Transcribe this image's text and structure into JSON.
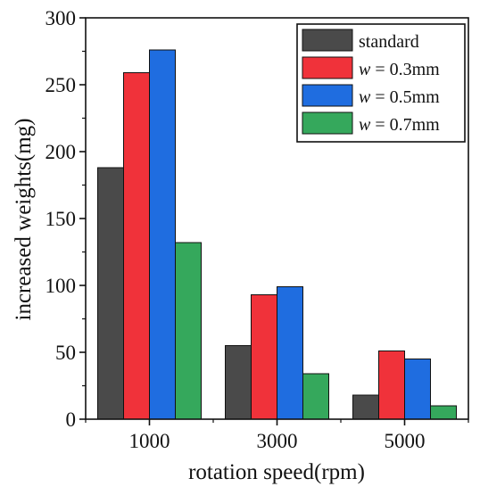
{
  "chart_data": {
    "type": "bar",
    "title": "",
    "xlabel": "rotation speed(rpm)",
    "ylabel": "increased weights(mg)",
    "categories": [
      "1000",
      "3000",
      "5000"
    ],
    "ylim": [
      0,
      300
    ],
    "yticks": [
      0,
      50,
      100,
      150,
      200,
      250,
      300
    ],
    "grid": false,
    "legend_position": "top-right",
    "series": [
      {
        "name": "standard",
        "legend_var": "",
        "legend_rest": "standard",
        "color": "#4a4a4a",
        "values": [
          188,
          55,
          18
        ]
      },
      {
        "name": "w = 0.3mm",
        "legend_var": "w",
        "legend_rest": " = 0.3mm",
        "color": "#f0323a",
        "values": [
          259,
          93,
          51
        ]
      },
      {
        "name": "w = 0.5mm",
        "legend_var": "w",
        "legend_rest": " = 0.5mm",
        "color": "#1f6de0",
        "values": [
          276,
          99,
          45
        ]
      },
      {
        "name": "w = 0.7mm",
        "legend_var": "w",
        "legend_rest": " = 0.7mm",
        "color": "#35a85c",
        "values": [
          132,
          34,
          10
        ]
      }
    ]
  }
}
